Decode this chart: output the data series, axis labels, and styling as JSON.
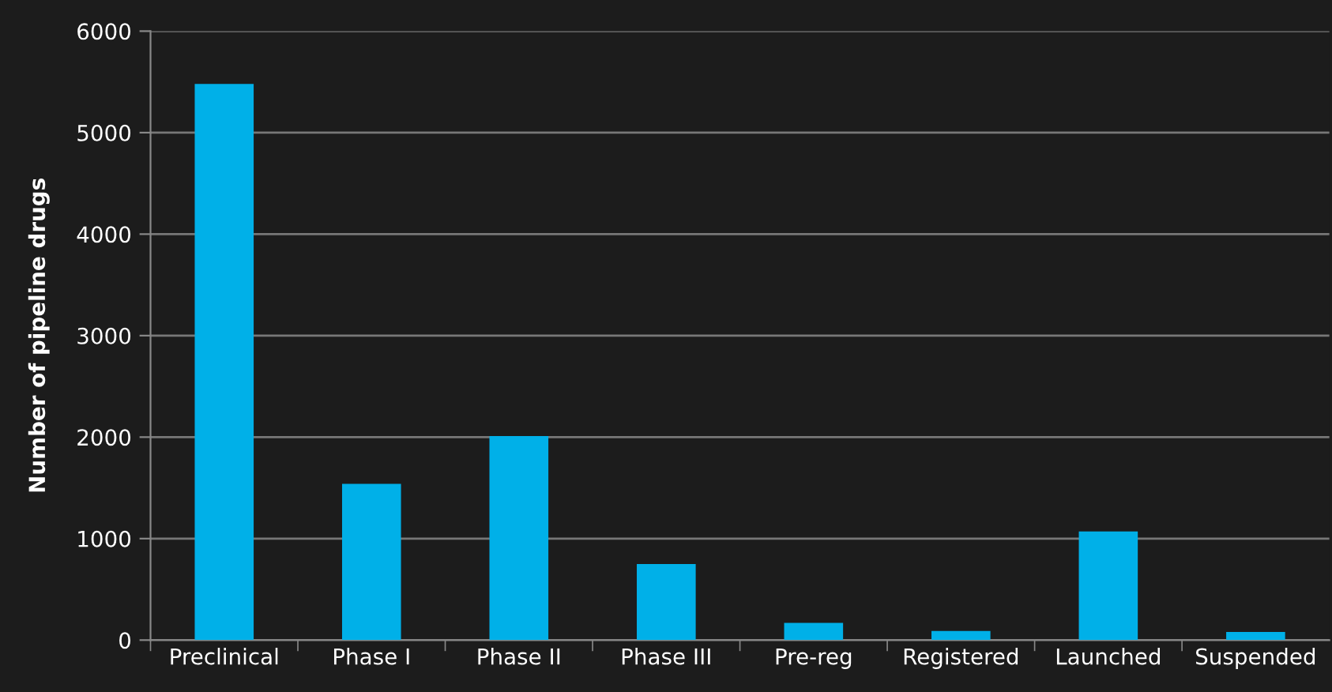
{
  "chart_data": {
    "type": "bar",
    "ylabel": "Number of pipeline drugs",
    "categories": [
      "Preclinical",
      "Phase I",
      "Phase II",
      "Phase III",
      "Pre-reg",
      "Registered",
      "Launched",
      "Suspended"
    ],
    "values": [
      5480,
      1540,
      2010,
      750,
      170,
      90,
      1070,
      80
    ],
    "color": "#00b0e8",
    "ylim": [
      0,
      6000
    ],
    "yticks": [
      0,
      1000,
      2000,
      3000,
      4000,
      5000,
      6000
    ],
    "grid": "y"
  }
}
